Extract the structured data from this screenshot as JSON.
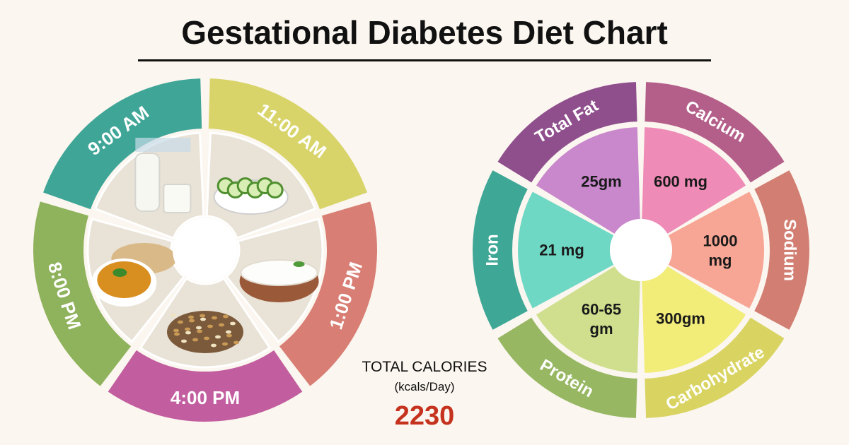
{
  "title": "Gestational Diabetes Diet Chart",
  "meal_times": [
    {
      "time": "11:00 AM",
      "color": "#d8d46a",
      "food": "cucumber-salad"
    },
    {
      "time": "1:00 PM",
      "color": "#d87e74",
      "food": "yogurt-bowl"
    },
    {
      "time": "4:00 PM",
      "color": "#c25e9f",
      "food": "sprouts"
    },
    {
      "time": "8:00 PM",
      "color": "#8fb25c",
      "food": "dal-and-roti"
    },
    {
      "time": "9:00 AM",
      "color": "#3fa697",
      "food": "milk"
    }
  ],
  "nutrients": [
    {
      "name": "Calcium",
      "value": "600 mg",
      "ring_color": "#b45f89",
      "fill_color": "#ee8bb6"
    },
    {
      "name": "Sodium",
      "value": "1000 mg",
      "ring_color": "#d27e72",
      "fill_color": "#f7a594"
    },
    {
      "name": "Carbohydrate",
      "value": "300gm",
      "ring_color": "#d9d461",
      "fill_color": "#f2ec78"
    },
    {
      "name": "Protein",
      "value": "60-65 gm",
      "ring_color": "#97b763",
      "fill_color": "#cfdf8e"
    },
    {
      "name": "Iron",
      "value": "21 mg",
      "ring_color": "#3ea796",
      "fill_color": "#6fd8c5"
    },
    {
      "name": "Total Fat",
      "value": "25gm",
      "ring_color": "#8f4f8d",
      "fill_color": "#c987cc"
    }
  ],
  "calories": {
    "label": "TOTAL CALORIES",
    "unit": "(kcals/Day)",
    "value": "2230"
  }
}
